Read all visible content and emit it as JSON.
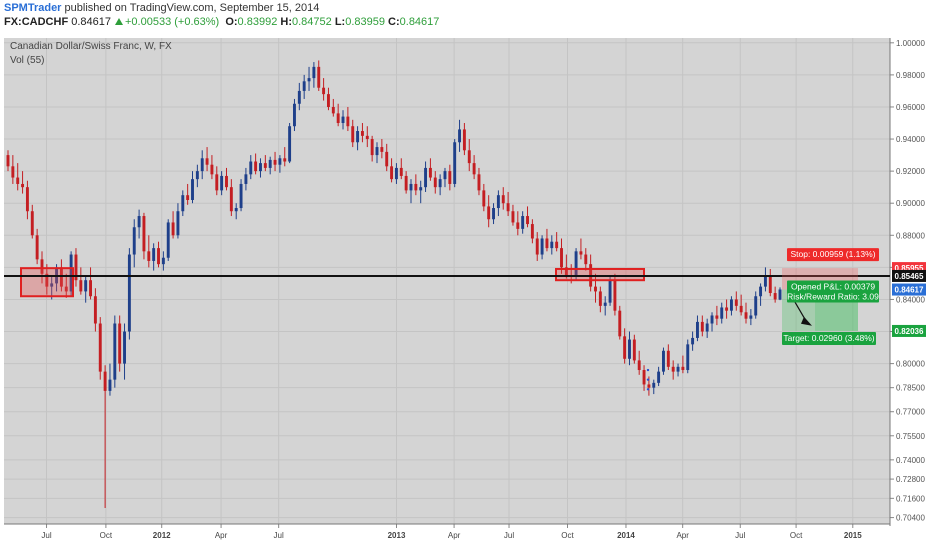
{
  "header": {
    "author": "SPMTrader",
    "published_text": "published on TradingView.com, September 15, 2014",
    "symbol": "FX:CADCHF",
    "last": "0.84617",
    "change": "+0.00533 (+0.63%)",
    "o_label": "O:",
    "o_value": "0.83992",
    "h_label": "H:",
    "h_value": "0.84752",
    "l_label": "L:",
    "l_value": "0.83959",
    "c_label": "C:",
    "c_value": "0.84617"
  },
  "legend": {
    "title": "Canadian Dollar/Swiss Franc, W, FX",
    "vol": "Vol (55)"
  },
  "chart_data": {
    "type": "candlestick",
    "timeframe": "W",
    "ylim": [
      0.7,
      1.003
    ],
    "grid": true,
    "price_ticks": [
      "1.00000",
      "0.98000",
      "0.96000",
      "0.94000",
      "0.92000",
      "0.90000",
      "0.88000",
      "0.86000",
      "0.84000",
      "0.82000",
      "0.80000",
      "0.78500",
      "0.77000",
      "0.75500",
      "0.74000",
      "0.72800",
      "0.71600",
      "0.70400"
    ],
    "time_ticks": [
      "Jul",
      "Oct",
      "2012",
      "Apr",
      "Jul",
      "2013",
      "Apr",
      "Jul",
      "Oct",
      "2014",
      "Apr",
      "Jul",
      "Oct",
      "2015"
    ],
    "horizontal_line": 0.85465,
    "price_labels": [
      {
        "text": "0.85955",
        "color": "#f2343c"
      },
      {
        "text": "0.85465",
        "color": "#111111"
      },
      {
        "text": "0.84617",
        "color": "#2a6fd6"
      },
      {
        "text": "0.82036",
        "color": "#1aa33f"
      }
    ],
    "position": {
      "stop": "Stop: 0.00959 (1.13%)",
      "pnl": "Opened P&L: 0.00379",
      "rr": "Risk/Reward Ratio: 3.09",
      "target": "Target: 0.02960 (3.48%)"
    },
    "ohlc": [
      [
        0.93,
        0.933,
        0.92,
        0.923
      ],
      [
        0.923,
        0.93,
        0.912,
        0.916
      ],
      [
        0.916,
        0.925,
        0.908,
        0.912
      ],
      [
        0.912,
        0.92,
        0.906,
        0.91
      ],
      [
        0.91,
        0.914,
        0.89,
        0.895
      ],
      [
        0.895,
        0.899,
        0.878,
        0.88
      ],
      [
        0.88,
        0.884,
        0.862,
        0.865
      ],
      [
        0.865,
        0.87,
        0.85,
        0.856
      ],
      [
        0.856,
        0.862,
        0.843,
        0.848
      ],
      [
        0.848,
        0.854,
        0.84,
        0.85
      ],
      [
        0.85,
        0.862,
        0.845,
        0.86
      ],
      [
        0.86,
        0.865,
        0.845,
        0.848
      ],
      [
        0.848,
        0.856,
        0.841,
        0.845
      ],
      [
        0.845,
        0.87,
        0.842,
        0.868
      ],
      [
        0.868,
        0.872,
        0.848,
        0.852
      ],
      [
        0.852,
        0.86,
        0.843,
        0.845
      ],
      [
        0.845,
        0.855,
        0.838,
        0.852
      ],
      [
        0.852,
        0.86,
        0.84,
        0.842
      ],
      [
        0.842,
        0.847,
        0.82,
        0.825
      ],
      [
        0.825,
        0.829,
        0.79,
        0.795
      ],
      [
        0.795,
        0.799,
        0.71,
        0.783
      ],
      [
        0.783,
        0.8,
        0.78,
        0.79
      ],
      [
        0.79,
        0.83,
        0.785,
        0.825
      ],
      [
        0.825,
        0.83,
        0.795,
        0.8
      ],
      [
        0.8,
        0.825,
        0.79,
        0.82
      ],
      [
        0.82,
        0.872,
        0.815,
        0.868
      ],
      [
        0.868,
        0.89,
        0.86,
        0.885
      ],
      [
        0.885,
        0.896,
        0.878,
        0.892
      ],
      [
        0.892,
        0.894,
        0.865,
        0.87
      ],
      [
        0.87,
        0.88,
        0.86,
        0.864
      ],
      [
        0.864,
        0.875,
        0.858,
        0.872
      ],
      [
        0.872,
        0.876,
        0.86,
        0.862
      ],
      [
        0.862,
        0.87,
        0.858,
        0.866
      ],
      [
        0.866,
        0.89,
        0.864,
        0.888
      ],
      [
        0.888,
        0.895,
        0.878,
        0.88
      ],
      [
        0.88,
        0.9,
        0.878,
        0.895
      ],
      [
        0.895,
        0.908,
        0.892,
        0.905
      ],
      [
        0.905,
        0.912,
        0.899,
        0.902
      ],
      [
        0.902,
        0.92,
        0.9,
        0.915
      ],
      [
        0.915,
        0.924,
        0.91,
        0.92
      ],
      [
        0.92,
        0.933,
        0.915,
        0.928
      ],
      [
        0.928,
        0.935,
        0.92,
        0.924
      ],
      [
        0.924,
        0.93,
        0.915,
        0.918
      ],
      [
        0.918,
        0.923,
        0.905,
        0.908
      ],
      [
        0.908,
        0.92,
        0.905,
        0.917
      ],
      [
        0.917,
        0.922,
        0.908,
        0.91
      ],
      [
        0.91,
        0.915,
        0.892,
        0.895
      ],
      [
        0.895,
        0.9,
        0.89,
        0.897
      ],
      [
        0.897,
        0.915,
        0.895,
        0.912
      ],
      [
        0.912,
        0.922,
        0.908,
        0.918
      ],
      [
        0.918,
        0.93,
        0.915,
        0.926
      ],
      [
        0.926,
        0.931,
        0.918,
        0.92
      ],
      [
        0.92,
        0.928,
        0.916,
        0.925
      ],
      [
        0.925,
        0.93,
        0.92,
        0.922
      ],
      [
        0.922,
        0.929,
        0.918,
        0.927
      ],
      [
        0.927,
        0.932,
        0.92,
        0.924
      ],
      [
        0.924,
        0.93,
        0.919,
        0.928
      ],
      [
        0.928,
        0.935,
        0.923,
        0.926
      ],
      [
        0.926,
        0.95,
        0.925,
        0.948
      ],
      [
        0.948,
        0.965,
        0.945,
        0.962
      ],
      [
        0.962,
        0.975,
        0.958,
        0.97
      ],
      [
        0.97,
        0.98,
        0.965,
        0.976
      ],
      [
        0.976,
        0.985,
        0.97,
        0.978
      ],
      [
        0.978,
        0.988,
        0.972,
        0.985
      ],
      [
        0.985,
        0.989,
        0.97,
        0.972
      ],
      [
        0.972,
        0.978,
        0.964,
        0.968
      ],
      [
        0.968,
        0.972,
        0.958,
        0.96
      ],
      [
        0.96,
        0.965,
        0.954,
        0.956
      ],
      [
        0.956,
        0.962,
        0.948,
        0.95
      ],
      [
        0.95,
        0.958,
        0.946,
        0.954
      ],
      [
        0.954,
        0.96,
        0.945,
        0.948
      ],
      [
        0.948,
        0.952,
        0.935,
        0.938
      ],
      [
        0.938,
        0.948,
        0.933,
        0.945
      ],
      [
        0.945,
        0.95,
        0.938,
        0.942
      ],
      [
        0.942,
        0.948,
        0.935,
        0.94
      ],
      [
        0.94,
        0.942,
        0.926,
        0.93
      ],
      [
        0.93,
        0.938,
        0.925,
        0.935
      ],
      [
        0.935,
        0.94,
        0.928,
        0.932
      ],
      [
        0.932,
        0.937,
        0.92,
        0.923
      ],
      [
        0.923,
        0.928,
        0.913,
        0.915
      ],
      [
        0.915,
        0.925,
        0.912,
        0.922
      ],
      [
        0.922,
        0.928,
        0.915,
        0.917
      ],
      [
        0.917,
        0.92,
        0.906,
        0.908
      ],
      [
        0.908,
        0.915,
        0.9,
        0.912
      ],
      [
        0.912,
        0.918,
        0.905,
        0.908
      ],
      [
        0.908,
        0.914,
        0.9,
        0.91
      ],
      [
        0.91,
        0.926,
        0.907,
        0.922
      ],
      [
        0.922,
        0.928,
        0.914,
        0.916
      ],
      [
        0.916,
        0.92,
        0.906,
        0.91
      ],
      [
        0.91,
        0.918,
        0.905,
        0.915
      ],
      [
        0.915,
        0.922,
        0.91,
        0.92
      ],
      [
        0.92,
        0.924,
        0.908,
        0.912
      ],
      [
        0.912,
        0.94,
        0.91,
        0.938
      ],
      [
        0.938,
        0.952,
        0.932,
        0.946
      ],
      [
        0.946,
        0.95,
        0.93,
        0.933
      ],
      [
        0.933,
        0.94,
        0.92,
        0.925
      ],
      [
        0.925,
        0.93,
        0.915,
        0.918
      ],
      [
        0.918,
        0.922,
        0.905,
        0.908
      ],
      [
        0.908,
        0.912,
        0.895,
        0.898
      ],
      [
        0.898,
        0.905,
        0.885,
        0.89
      ],
      [
        0.89,
        0.9,
        0.887,
        0.897
      ],
      [
        0.897,
        0.908,
        0.892,
        0.905
      ],
      [
        0.905,
        0.91,
        0.896,
        0.9
      ],
      [
        0.9,
        0.907,
        0.892,
        0.895
      ],
      [
        0.895,
        0.899,
        0.886,
        0.888
      ],
      [
        0.888,
        0.895,
        0.88,
        0.884
      ],
      [
        0.884,
        0.895,
        0.881,
        0.892
      ],
      [
        0.892,
        0.898,
        0.885,
        0.887
      ],
      [
        0.887,
        0.89,
        0.875,
        0.878
      ],
      [
        0.878,
        0.882,
        0.864,
        0.868
      ],
      [
        0.868,
        0.88,
        0.865,
        0.878
      ],
      [
        0.878,
        0.884,
        0.87,
        0.872
      ],
      [
        0.872,
        0.88,
        0.868,
        0.876
      ],
      [
        0.876,
        0.882,
        0.87,
        0.872
      ],
      [
        0.872,
        0.878,
        0.856,
        0.86
      ],
      [
        0.86,
        0.868,
        0.853,
        0.855
      ],
      [
        0.855,
        0.862,
        0.85,
        0.854
      ],
      [
        0.854,
        0.872,
        0.852,
        0.87
      ],
      [
        0.87,
        0.878,
        0.865,
        0.868
      ],
      [
        0.868,
        0.872,
        0.858,
        0.862
      ],
      [
        0.862,
        0.868,
        0.845,
        0.848
      ],
      [
        0.848,
        0.856,
        0.838,
        0.845
      ],
      [
        0.845,
        0.848,
        0.832,
        0.836
      ],
      [
        0.836,
        0.842,
        0.83,
        0.838
      ],
      [
        0.838,
        0.855,
        0.836,
        0.852
      ],
      [
        0.852,
        0.856,
        0.83,
        0.833
      ],
      [
        0.833,
        0.836,
        0.815,
        0.817
      ],
      [
        0.817,
        0.822,
        0.8,
        0.803
      ],
      [
        0.803,
        0.82,
        0.799,
        0.815
      ],
      [
        0.815,
        0.818,
        0.8,
        0.802
      ],
      [
        0.802,
        0.808,
        0.793,
        0.796
      ],
      [
        0.796,
        0.799,
        0.783,
        0.787
      ],
      [
        0.787,
        0.792,
        0.78,
        0.785
      ],
      [
        0.785,
        0.79,
        0.781,
        0.788
      ],
      [
        0.788,
        0.798,
        0.786,
        0.795
      ],
      [
        0.795,
        0.81,
        0.793,
        0.808
      ],
      [
        0.808,
        0.812,
        0.796,
        0.798
      ],
      [
        0.798,
        0.802,
        0.79,
        0.795
      ],
      [
        0.795,
        0.8,
        0.792,
        0.798
      ],
      [
        0.798,
        0.805,
        0.794,
        0.796
      ],
      [
        0.796,
        0.815,
        0.794,
        0.812
      ],
      [
        0.812,
        0.82,
        0.808,
        0.816
      ],
      [
        0.816,
        0.83,
        0.814,
        0.826
      ],
      [
        0.826,
        0.83,
        0.817,
        0.82
      ],
      [
        0.82,
        0.828,
        0.816,
        0.825
      ],
      [
        0.825,
        0.832,
        0.82,
        0.83
      ],
      [
        0.83,
        0.836,
        0.824,
        0.828
      ],
      [
        0.828,
        0.838,
        0.825,
        0.835
      ],
      [
        0.835,
        0.84,
        0.828,
        0.833
      ],
      [
        0.833,
        0.842,
        0.83,
        0.84
      ],
      [
        0.84,
        0.845,
        0.833,
        0.836
      ],
      [
        0.836,
        0.843,
        0.83,
        0.832
      ],
      [
        0.832,
        0.838,
        0.825,
        0.828
      ],
      [
        0.828,
        0.834,
        0.824,
        0.83
      ],
      [
        0.83,
        0.845,
        0.828,
        0.842
      ],
      [
        0.842,
        0.85,
        0.836,
        0.848
      ],
      [
        0.848,
        0.86,
        0.845,
        0.855
      ],
      [
        0.855,
        0.859,
        0.842,
        0.844
      ],
      [
        0.844,
        0.848,
        0.838,
        0.84
      ],
      [
        0.8399,
        0.8475,
        0.8396,
        0.8462
      ]
    ]
  }
}
